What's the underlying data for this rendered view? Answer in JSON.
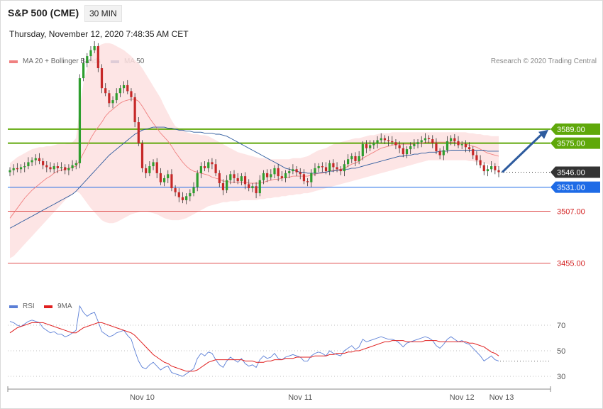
{
  "header": {
    "title": "S&P 500 (CME)",
    "interval": "30 MIN",
    "datetime": "Thursday, November 12, 2020 7:48:35 AM CET",
    "credit": "Research © 2020 Trading Central"
  },
  "price_legend": [
    {
      "label": "MA 20 + Bollinger Bands",
      "color": "#f08080"
    },
    {
      "label": "MA 50",
      "color": "#2e5b9e"
    }
  ],
  "rsi_legend": [
    {
      "label": "RSI",
      "color": "#5b7fd6"
    },
    {
      "label": "9MA",
      "color": "#e02020"
    }
  ],
  "colors": {
    "up_candle": "#2e9e2e",
    "down_candle": "#c62828",
    "resistance": "#5fa80a",
    "pivot": "#1e6be6",
    "support": "#e05050",
    "current": "#333333",
    "arrow": "#2e5b9e",
    "band_fill": "#fde0e0"
  },
  "chart_data": [
    {
      "type": "candlestick",
      "title": "S&P 500 (CME)",
      "interval": "30 MIN",
      "ylim": [
        3420,
        3650
      ],
      "x_ticks": [
        "Nov 10",
        "Nov 11",
        "Nov 12",
        "Nov 13"
      ],
      "levels": [
        {
          "value": 3589.0,
          "label": "3589.00",
          "kind": "resistance"
        },
        {
          "value": 3575.0,
          "label": "3575.00",
          "kind": "resistance"
        },
        {
          "value": 3546.0,
          "label": "3546.00",
          "kind": "current"
        },
        {
          "value": 3531.0,
          "label": "3531.00",
          "kind": "pivot"
        },
        {
          "value": 3507.0,
          "label": "3507.00",
          "kind": "support"
        },
        {
          "value": 3455.0,
          "label": "3455.00",
          "kind": "support"
        }
      ],
      "series": [
        {
          "name": "S&P 500",
          "close": [
            3548,
            3550,
            3549,
            3551,
            3552,
            3556,
            3558,
            3560,
            3557,
            3553,
            3551,
            3549,
            3552,
            3550,
            3551,
            3548,
            3550,
            3553,
            3555,
            3640,
            3655,
            3662,
            3668,
            3672,
            3650,
            3630,
            3625,
            3615,
            3618,
            3625,
            3630,
            3633,
            3627,
            3621,
            3596,
            3575,
            3550,
            3545,
            3552,
            3556,
            3545,
            3536,
            3540,
            3544,
            3530,
            3526,
            3521,
            3518,
            3522,
            3525,
            3531,
            3545,
            3552,
            3550,
            3556,
            3554,
            3545,
            3535,
            3528,
            3538,
            3544,
            3540,
            3537,
            3542,
            3534,
            3530,
            3532,
            3525,
            3538,
            3545,
            3541,
            3544,
            3550,
            3542,
            3540,
            3545,
            3547,
            3549,
            3546,
            3544,
            3537,
            3536,
            3545,
            3550,
            3552,
            3551,
            3547,
            3555,
            3551,
            3549,
            3547,
            3554,
            3559,
            3562,
            3557,
            3562,
            3574,
            3570,
            3573,
            3575,
            3578,
            3580,
            3578,
            3577,
            3576,
            3573,
            3570,
            3564,
            3569,
            3572,
            3574,
            3576,
            3578,
            3580,
            3579,
            3575,
            3567,
            3563,
            3568,
            3577,
            3580,
            3577,
            3573,
            3574,
            3571,
            3569,
            3563,
            3558,
            3553,
            3547,
            3549,
            3552,
            3548,
            3546
          ]
        },
        {
          "name": "MA 20",
          "values": [
            3500,
            3505,
            3510,
            3515,
            3520,
            3524,
            3528,
            3531,
            3534,
            3537,
            3540,
            3542,
            3545,
            3547,
            3548,
            3549,
            3550,
            3551,
            3552,
            3558,
            3565,
            3572,
            3580,
            3586,
            3591,
            3596,
            3602,
            3606,
            3609,
            3612,
            3615,
            3617,
            3618,
            3619,
            3619,
            3617,
            3612,
            3606,
            3600,
            3595,
            3590,
            3585,
            3581,
            3577,
            3572,
            3566,
            3561,
            3556,
            3552,
            3549,
            3547,
            3546,
            3545,
            3544,
            3543,
            3541,
            3540,
            3539,
            3537,
            3537,
            3536,
            3536,
            3536,
            3536,
            3536,
            3535,
            3535,
            3535,
            3535,
            3536,
            3537,
            3538,
            3539,
            3539,
            3540,
            3541,
            3541,
            3542,
            3542,
            3542,
            3542,
            3542,
            3543,
            3544,
            3545,
            3545,
            3546,
            3547,
            3548,
            3548,
            3549,
            3550,
            3552,
            3554,
            3555,
            3557,
            3560,
            3562,
            3564,
            3566,
            3568,
            3570,
            3571,
            3572,
            3573,
            3574,
            3574,
            3574,
            3574,
            3574,
            3574,
            3575,
            3575,
            3576,
            3576,
            3576,
            3576,
            3576,
            3576,
            3576,
            3576,
            3576,
            3575,
            3575,
            3574,
            3573,
            3572,
            3571,
            3569,
            3567,
            3565,
            3564,
            3563,
            3562
          ]
        },
        {
          "name": "MA 50",
          "values": [
            3490,
            3492,
            3494,
            3496,
            3498,
            3500,
            3502,
            3504,
            3506,
            3508,
            3510,
            3512,
            3514,
            3516,
            3518,
            3520,
            3522,
            3524,
            3527,
            3531,
            3535,
            3539,
            3543,
            3547,
            3551,
            3555,
            3559,
            3563,
            3566,
            3569,
            3572,
            3575,
            3578,
            3581,
            3584,
            3586,
            3588,
            3589,
            3590,
            3591,
            3591,
            3591,
            3591,
            3590,
            3590,
            3589,
            3588,
            3588,
            3587,
            3587,
            3586,
            3586,
            3586,
            3585,
            3585,
            3585,
            3584,
            3584,
            3583,
            3582,
            3580,
            3578,
            3576,
            3574,
            3572,
            3570,
            3568,
            3566,
            3564,
            3562,
            3560,
            3558,
            3556,
            3554,
            3552,
            3550,
            3549,
            3548,
            3547,
            3546,
            3546,
            3545,
            3545,
            3545,
            3545,
            3546,
            3546,
            3547,
            3547,
            3548,
            3548,
            3549,
            3549,
            3550,
            3550,
            3551,
            3552,
            3553,
            3554,
            3555,
            3556,
            3557,
            3558,
            3559,
            3560,
            3561,
            3562,
            3562,
            3563,
            3563,
            3564,
            3564,
            3565,
            3565,
            3566,
            3566,
            3566,
            3567,
            3567,
            3567,
            3568,
            3568,
            3568,
            3568,
            3568,
            3568,
            3568,
            3568,
            3568,
            3568,
            3567,
            3567,
            3567,
            3567
          ]
        },
        {
          "name": "Bollinger Bands",
          "upper": [
            3555,
            3558,
            3561,
            3563,
            3565,
            3567,
            3569,
            3570,
            3571,
            3571,
            3572,
            3572,
            3573,
            3574,
            3574,
            3574,
            3575,
            3576,
            3580,
            3610,
            3635,
            3650,
            3660,
            3668,
            3672,
            3674,
            3675,
            3675,
            3674,
            3672,
            3670,
            3668,
            3665,
            3662,
            3658,
            3655,
            3650,
            3644,
            3638,
            3632,
            3626,
            3620,
            3612,
            3605,
            3598,
            3592,
            3590,
            3588,
            3586,
            3585,
            3584,
            3584,
            3583,
            3583,
            3582,
            3580,
            3578,
            3576,
            3574,
            3572,
            3570,
            3568,
            3566,
            3565,
            3564,
            3563,
            3562,
            3561,
            3560,
            3560,
            3559,
            3559,
            3559,
            3559,
            3559,
            3559,
            3559,
            3560,
            3560,
            3560,
            3561,
            3562,
            3564,
            3566,
            3568,
            3569,
            3570,
            3572,
            3574,
            3575,
            3576,
            3577,
            3578,
            3579,
            3580,
            3580,
            3581,
            3582,
            3583,
            3583,
            3584,
            3585,
            3585,
            3585,
            3586,
            3586,
            3586,
            3586,
            3586,
            3586,
            3586,
            3586,
            3586,
            3586,
            3586,
            3586,
            3586,
            3586,
            3586,
            3586,
            3586,
            3586,
            3586,
            3586,
            3586,
            3585,
            3585,
            3584,
            3584,
            3583,
            3583,
            3582,
            3582,
            3582
          ],
          "lower": [
            3460,
            3462,
            3466,
            3470,
            3474,
            3478,
            3482,
            3486,
            3490,
            3494,
            3498,
            3502,
            3506,
            3510,
            3514,
            3518,
            3521,
            3524,
            3527,
            3525,
            3520,
            3515,
            3510,
            3506,
            3502,
            3498,
            3496,
            3495,
            3495,
            3496,
            3498,
            3500,
            3502,
            3504,
            3505,
            3506,
            3507,
            3507,
            3506,
            3505,
            3504,
            3502,
            3500,
            3499,
            3498,
            3498,
            3498,
            3499,
            3500,
            3502,
            3504,
            3506,
            3508,
            3510,
            3512,
            3513,
            3514,
            3515,
            3516,
            3516,
            3517,
            3517,
            3517,
            3518,
            3518,
            3518,
            3518,
            3518,
            3519,
            3519,
            3520,
            3520,
            3521,
            3521,
            3522,
            3522,
            3523,
            3523,
            3524,
            3524,
            3525,
            3525,
            3526,
            3527,
            3528,
            3529,
            3530,
            3531,
            3532,
            3533,
            3534,
            3535,
            3536,
            3537,
            3538,
            3539,
            3540,
            3541,
            3542,
            3543,
            3544,
            3545,
            3546,
            3547,
            3548,
            3549,
            3550,
            3551,
            3552,
            3553,
            3554,
            3555,
            3556,
            3557,
            3558,
            3558,
            3558,
            3558,
            3558,
            3558,
            3558,
            3558,
            3558,
            3558,
            3558,
            3557,
            3557,
            3556,
            3556,
            3555,
            3554,
            3553,
            3552,
            3551
          ]
        }
      ]
    },
    {
      "type": "line",
      "title": "RSI",
      "ylim": [
        20,
        80
      ],
      "y_ticks": [
        70,
        50,
        30
      ],
      "series": [
        {
          "name": "RSI",
          "values": [
            73,
            72,
            70,
            69,
            71,
            73,
            74,
            73,
            72,
            68,
            66,
            64,
            65,
            63,
            63,
            61,
            62,
            64,
            66,
            85,
            80,
            77,
            79,
            80,
            73,
            65,
            63,
            61,
            62,
            64,
            65,
            66,
            62,
            59,
            50,
            42,
            37,
            36,
            39,
            41,
            38,
            35,
            37,
            38,
            33,
            32,
            31,
            30,
            32,
            34,
            36,
            44,
            48,
            46,
            49,
            48,
            43,
            39,
            37,
            42,
            45,
            43,
            41,
            44,
            40,
            38,
            39,
            37,
            43,
            46,
            44,
            45,
            48,
            44,
            43,
            45,
            46,
            47,
            46,
            45,
            42,
            42,
            46,
            48,
            49,
            48,
            46,
            50,
            48,
            47,
            46,
            50,
            52,
            54,
            51,
            53,
            59,
            57,
            58,
            59,
            60,
            61,
            60,
            59,
            59,
            58,
            56,
            53,
            56,
            57,
            58,
            59,
            60,
            61,
            60,
            58,
            54,
            52,
            55,
            59,
            61,
            59,
            57,
            58,
            56,
            55,
            52,
            49,
            46,
            42,
            44,
            46,
            43,
            42
          ]
        },
        {
          "name": "9MA",
          "values": [
            64,
            66,
            68,
            69,
            70,
            71,
            72,
            72,
            72,
            72,
            71,
            70,
            69,
            68,
            67,
            66,
            65,
            64,
            64,
            66,
            68,
            69,
            70,
            71,
            72,
            72,
            71,
            70,
            69,
            68,
            67,
            66,
            65,
            64,
            62,
            59,
            56,
            53,
            50,
            47,
            45,
            43,
            41,
            40,
            38,
            37,
            36,
            35,
            34,
            34,
            34,
            35,
            37,
            39,
            41,
            42,
            43,
            43,
            43,
            43,
            43,
            43,
            43,
            43,
            42,
            42,
            42,
            41,
            41,
            41,
            42,
            42,
            43,
            43,
            43,
            44,
            44,
            44,
            45,
            45,
            45,
            45,
            45,
            46,
            46,
            46,
            46,
            47,
            47,
            48,
            48,
            48,
            49,
            49,
            50,
            50,
            51,
            52,
            53,
            54,
            55,
            56,
            57,
            57,
            58,
            58,
            58,
            58,
            57,
            57,
            57,
            57,
            57,
            58,
            58,
            58,
            58,
            57,
            57,
            57,
            57,
            57,
            57,
            57,
            57,
            56,
            56,
            55,
            54,
            53,
            51,
            49,
            48,
            46
          ]
        }
      ]
    }
  ]
}
